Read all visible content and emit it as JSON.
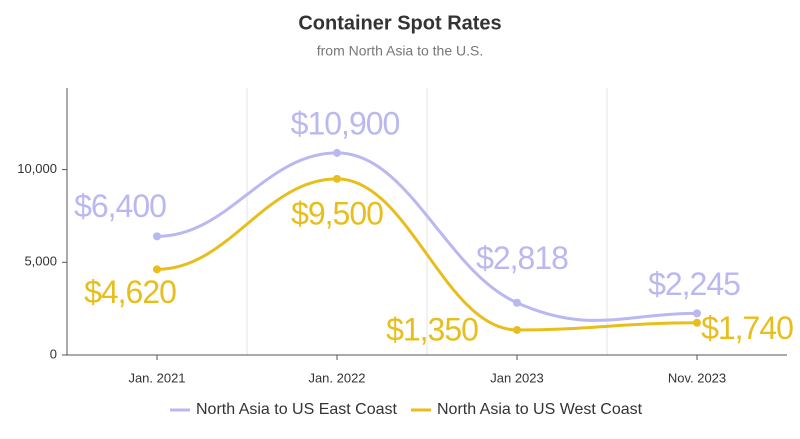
{
  "chart_data": {
    "type": "line",
    "title": "Container Spot Rates",
    "subtitle": "from North Asia to the U.S.",
    "categories": [
      "Jan. 2021",
      "Jan. 2022",
      "Jan 2023",
      "Nov. 2023"
    ],
    "series": [
      {
        "name": "North Asia to US East Coast",
        "color": "#b9b8f0",
        "values": [
          6400,
          10900,
          2818,
          2245
        ],
        "value_labels": [
          "$6,400",
          "$10,900",
          "$2,818",
          "$2,245"
        ]
      },
      {
        "name": "North Asia to US West Coast",
        "color": "#e8be1c",
        "values": [
          4620,
          9500,
          1350,
          1740
        ],
        "value_labels": [
          "$4,620",
          "$9,500",
          "$1,350",
          "$1,740"
        ]
      }
    ],
    "ylim": [
      0,
      14400
    ],
    "yticks": [
      0,
      {
        "value": 5000,
        "label": "5,000"
      },
      {
        "value": 10000,
        "label": "10,000"
      }
    ],
    "grid": true,
    "legend": "bottom"
  }
}
